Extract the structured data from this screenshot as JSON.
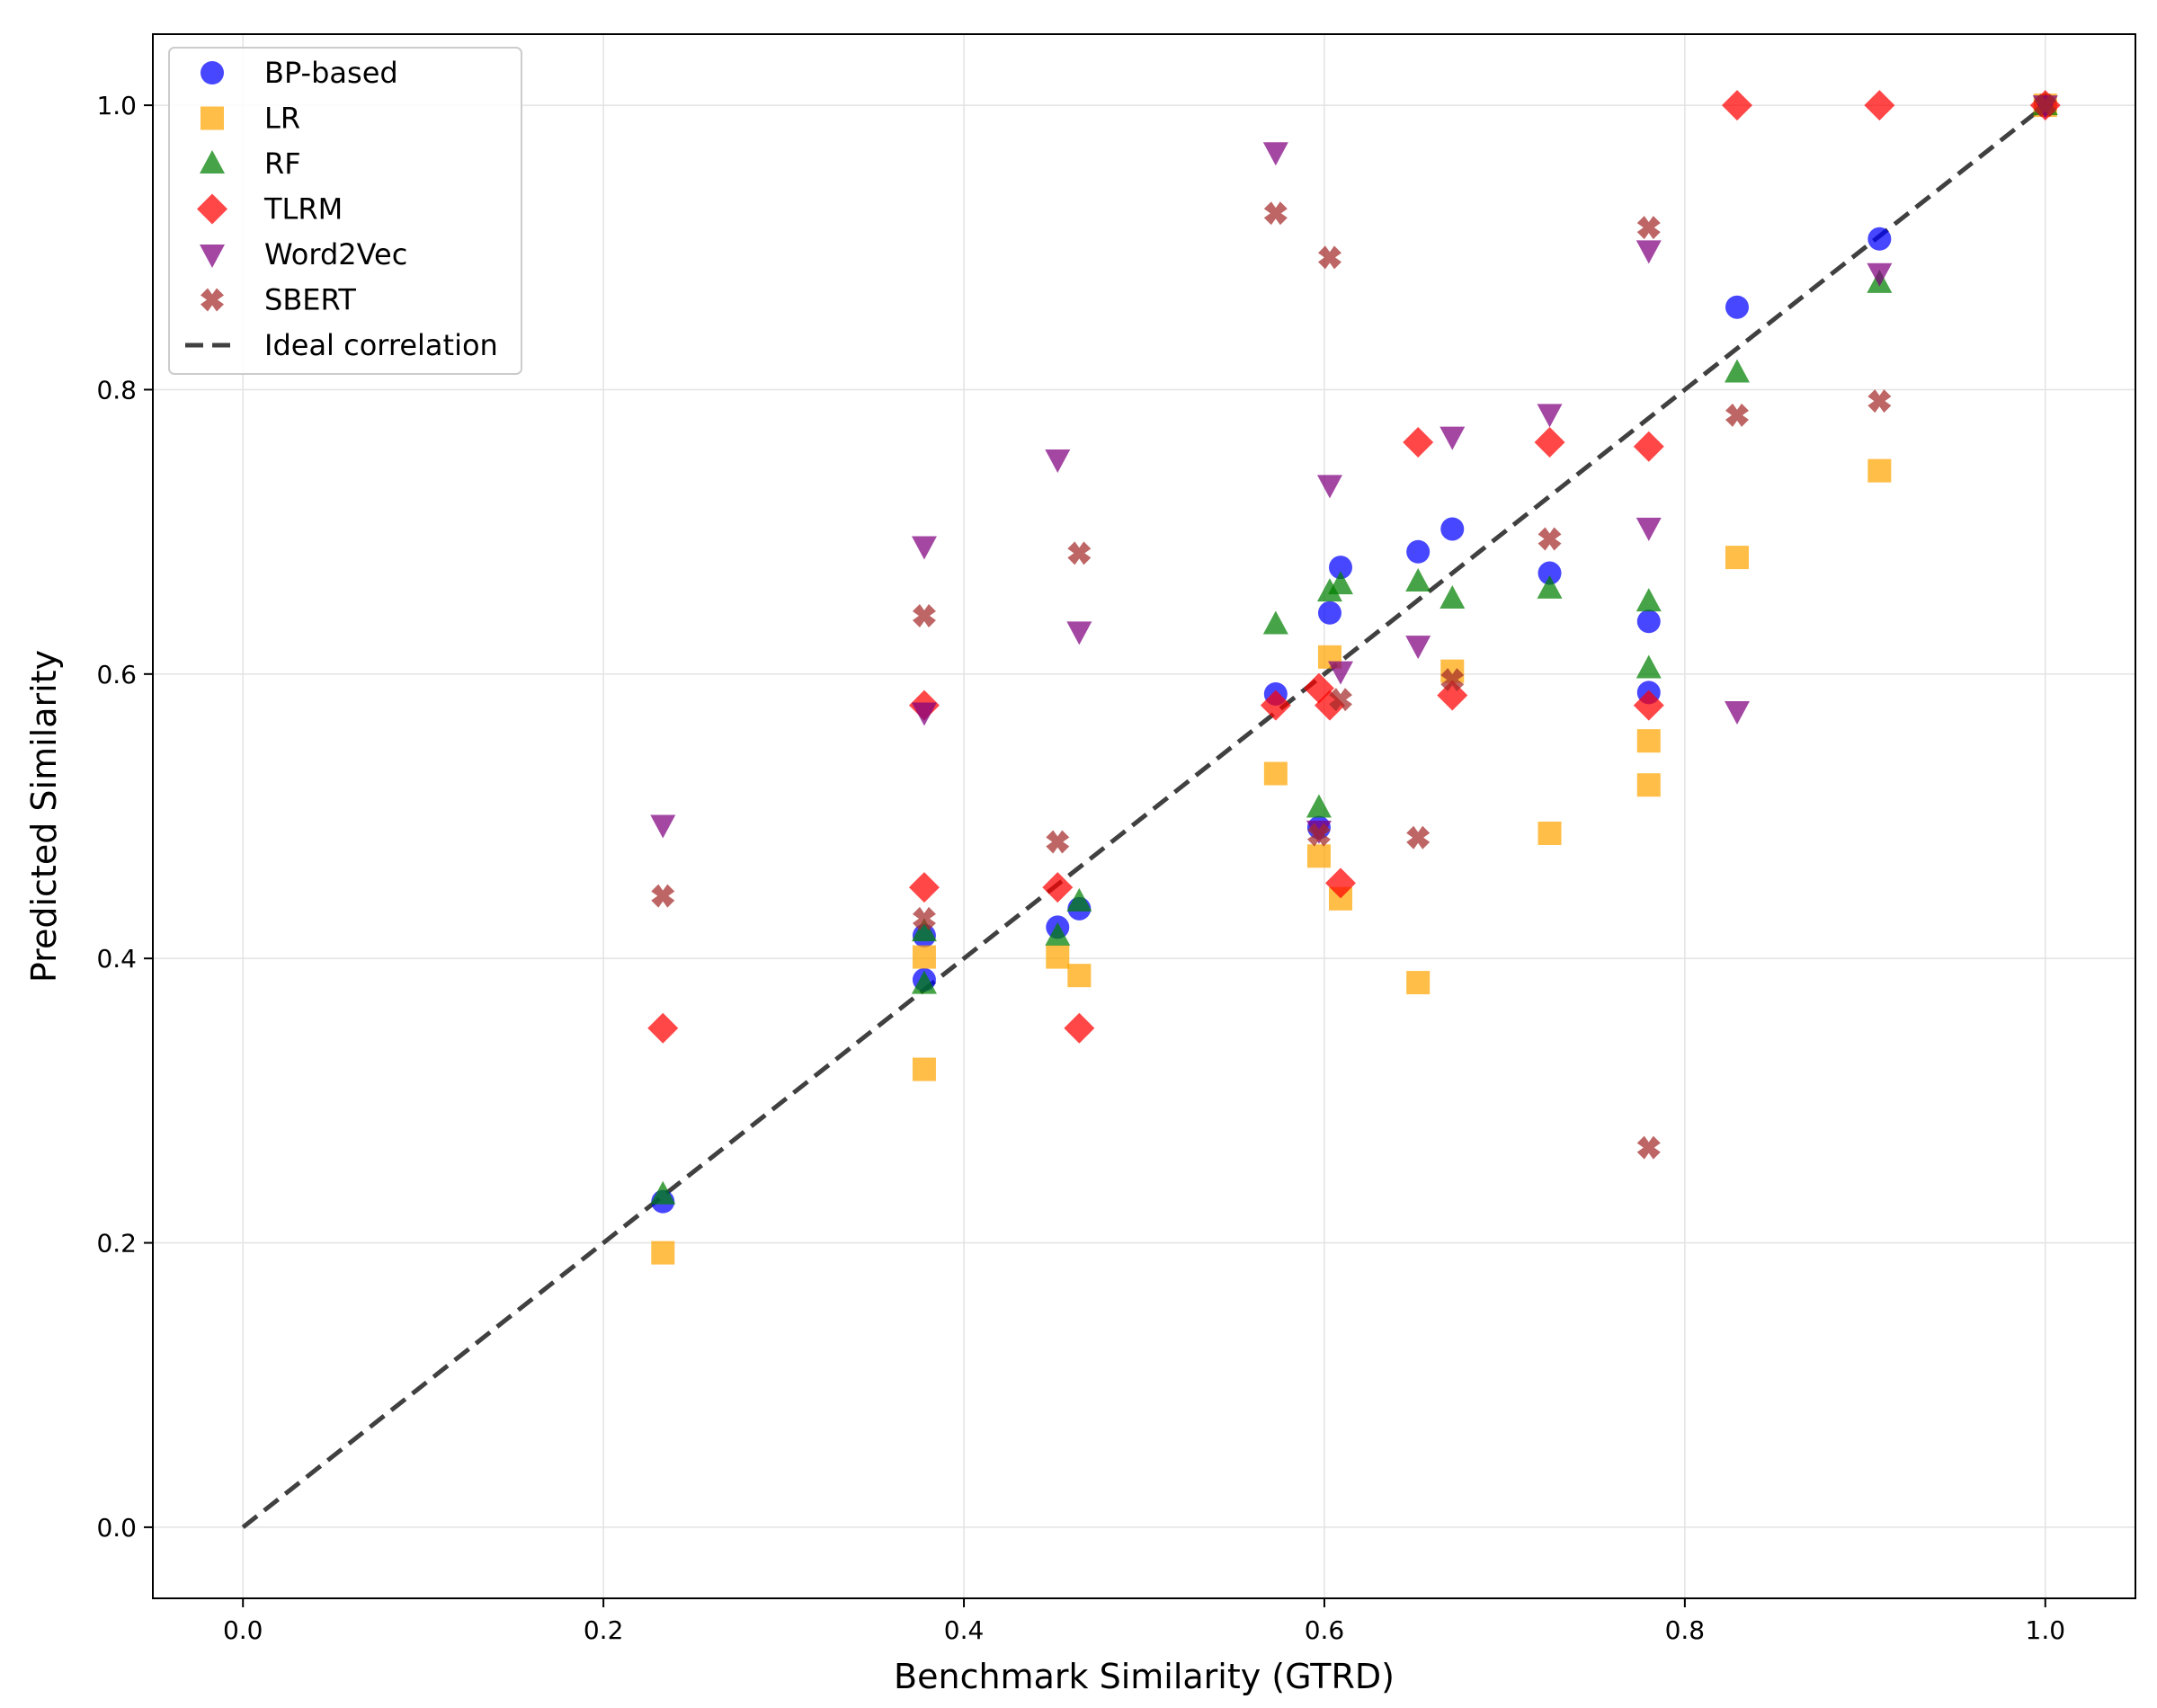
{
  "chart_data": {
    "type": "scatter",
    "title": "",
    "xlabel": "Benchmark Similarity (GTRD)",
    "ylabel": "Predicted Similarity",
    "xlim": [
      -0.05,
      1.05
    ],
    "ylim": [
      -0.05,
      1.05
    ],
    "xticks": [
      "0.0",
      "0.2",
      "0.4",
      "0.6",
      "0.8",
      "1.0"
    ],
    "yticks": [
      "0.0",
      "0.2",
      "0.4",
      "0.6",
      "0.8",
      "1.0"
    ],
    "grid": true,
    "legend_position": "top-left",
    "series": [
      {
        "name": "BP-based",
        "marker": "circle",
        "color": "#0000ff",
        "points": [
          [
            0.233,
            0.229
          ],
          [
            0.378,
            0.416
          ],
          [
            0.378,
            0.385
          ],
          [
            0.452,
            0.422
          ],
          [
            0.464,
            0.435
          ],
          [
            0.573,
            0.586
          ],
          [
            0.597,
            0.492
          ],
          [
            0.603,
            0.643
          ],
          [
            0.609,
            0.675
          ],
          [
            0.652,
            0.686
          ],
          [
            0.671,
            0.702
          ],
          [
            0.725,
            0.671
          ],
          [
            0.78,
            0.637
          ],
          [
            0.78,
            0.587
          ],
          [
            0.829,
            0.858
          ],
          [
            0.908,
            0.906
          ],
          [
            1.0,
            1.0
          ]
        ]
      },
      {
        "name": "LR",
        "marker": "square",
        "color": "#ffa500",
        "points": [
          [
            0.233,
            0.193
          ],
          [
            0.378,
            0.322
          ],
          [
            0.378,
            0.401
          ],
          [
            0.452,
            0.401
          ],
          [
            0.464,
            0.388
          ],
          [
            0.573,
            0.53
          ],
          [
            0.597,
            0.472
          ],
          [
            0.603,
            0.612
          ],
          [
            0.609,
            0.442
          ],
          [
            0.652,
            0.383
          ],
          [
            0.671,
            0.602
          ],
          [
            0.725,
            0.488
          ],
          [
            0.78,
            0.553
          ],
          [
            0.78,
            0.522
          ],
          [
            0.829,
            0.682
          ],
          [
            0.908,
            0.743
          ],
          [
            1.0,
            1.0
          ]
        ]
      },
      {
        "name": "RF",
        "marker": "triangle-up",
        "color": "#008000",
        "points": [
          [
            0.233,
            0.234
          ],
          [
            0.378,
            0.382
          ],
          [
            0.378,
            0.419
          ],
          [
            0.452,
            0.416
          ],
          [
            0.464,
            0.44
          ],
          [
            0.573,
            0.635
          ],
          [
            0.597,
            0.506
          ],
          [
            0.603,
            0.658
          ],
          [
            0.609,
            0.663
          ],
          [
            0.652,
            0.665
          ],
          [
            0.671,
            0.653
          ],
          [
            0.725,
            0.66
          ],
          [
            0.78,
            0.651
          ],
          [
            0.78,
            0.604
          ],
          [
            0.829,
            0.812
          ],
          [
            0.908,
            0.875
          ],
          [
            1.0,
            1.0
          ]
        ]
      },
      {
        "name": "TLRM",
        "marker": "diamond",
        "color": "#ff0000",
        "points": [
          [
            0.233,
            0.351
          ],
          [
            0.378,
            0.578
          ],
          [
            0.378,
            0.45
          ],
          [
            0.452,
            0.45
          ],
          [
            0.464,
            0.351
          ],
          [
            0.573,
            0.578
          ],
          [
            0.597,
            0.59
          ],
          [
            0.603,
            0.578
          ],
          [
            0.609,
            0.453
          ],
          [
            0.652,
            0.763
          ],
          [
            0.671,
            0.585
          ],
          [
            0.725,
            0.763
          ],
          [
            0.78,
            0.76
          ],
          [
            0.78,
            0.578
          ],
          [
            0.829,
            1.0
          ],
          [
            0.908,
            1.0
          ],
          [
            1.0,
            1.0
          ]
        ]
      },
      {
        "name": "Word2Vec",
        "marker": "triangle-down",
        "color": "#800080",
        "points": [
          [
            0.233,
            0.494
          ],
          [
            0.378,
            0.69
          ],
          [
            0.378,
            0.573
          ],
          [
            0.452,
            0.751
          ],
          [
            0.464,
            0.63
          ],
          [
            0.573,
            0.967
          ],
          [
            0.597,
            0.49
          ],
          [
            0.603,
            0.733
          ],
          [
            0.609,
            0.602
          ],
          [
            0.652,
            0.62
          ],
          [
            0.671,
            0.767
          ],
          [
            0.725,
            0.783
          ],
          [
            0.78,
            0.703
          ],
          [
            0.78,
            0.898
          ],
          [
            0.829,
            0.574
          ],
          [
            0.908,
            0.882
          ],
          [
            1.0,
            1.0
          ]
        ]
      },
      {
        "name": "SBERT",
        "marker": "x",
        "color": "#a52a2a",
        "points": [
          [
            0.233,
            0.444
          ],
          [
            0.378,
            0.641
          ],
          [
            0.378,
            0.428
          ],
          [
            0.452,
            0.482
          ],
          [
            0.464,
            0.685
          ],
          [
            0.573,
            0.924
          ],
          [
            0.597,
            0.487
          ],
          [
            0.603,
            0.893
          ],
          [
            0.609,
            0.582
          ],
          [
            0.652,
            0.485
          ],
          [
            0.671,
            0.596
          ],
          [
            0.725,
            0.695
          ],
          [
            0.78,
            0.914
          ],
          [
            0.78,
            0.267
          ],
          [
            0.829,
            0.782
          ],
          [
            0.908,
            0.792
          ],
          [
            1.0,
            1.0
          ]
        ]
      }
    ],
    "reference_line": {
      "name": "Ideal correlation",
      "style": "dashed",
      "color": "#404040",
      "from": [
        0,
        0
      ],
      "to": [
        1,
        1
      ]
    }
  }
}
